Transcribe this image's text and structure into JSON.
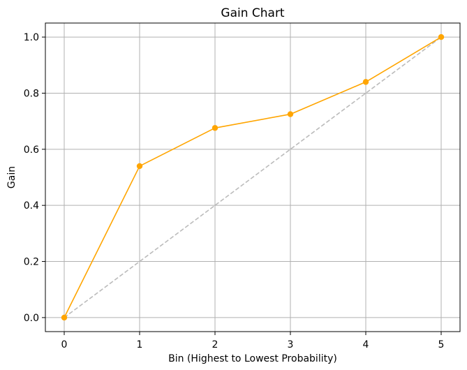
{
  "chart_data": {
    "type": "line",
    "title": "Gain Chart",
    "xlabel": "Bin (Highest to Lowest Probability)",
    "ylabel": "Gain",
    "xlim": [
      -0.25,
      5.25
    ],
    "ylim": [
      -0.05,
      1.05
    ],
    "x_ticks": [
      0,
      1,
      2,
      3,
      4,
      5
    ],
    "x_tick_labels": [
      "0",
      "1",
      "2",
      "3",
      "4",
      "5"
    ],
    "y_ticks": [
      0.0,
      0.2,
      0.4,
      0.6,
      0.8,
      1.0
    ],
    "y_tick_labels": [
      "0.0",
      "0.2",
      "0.4",
      "0.6",
      "0.8",
      "1.0"
    ],
    "grid": true,
    "series": [
      {
        "x": [
          0,
          1,
          2,
          3,
          4,
          5
        ],
        "values": [
          0.0,
          0.54,
          0.676,
          0.725,
          0.84,
          1.0
        ],
        "color": "#FFA500",
        "style": "solid",
        "marker": "circle"
      },
      {
        "x": [
          0,
          5
        ],
        "values": [
          0.0,
          1.0
        ],
        "color": "#BBBBBB",
        "style": "dashed",
        "marker": "none"
      }
    ]
  }
}
